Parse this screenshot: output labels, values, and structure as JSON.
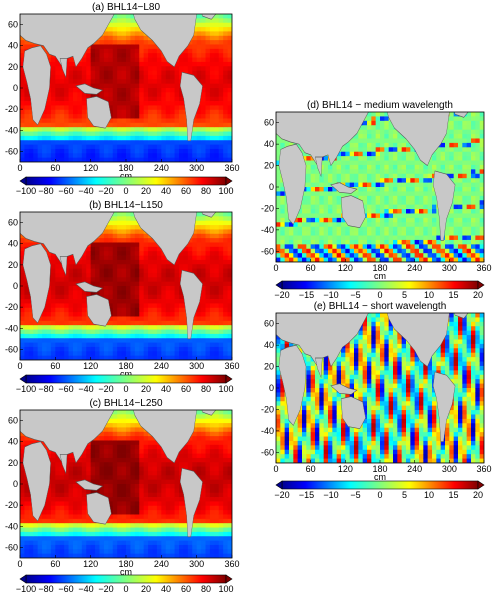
{
  "panels": [
    {
      "title": "(a) BHL14−L80",
      "kind": "large",
      "x_ticks": [
        "0",
        "60",
        "120",
        "180",
        "240",
        "300",
        "360"
      ],
      "y_ticks": [
        "60",
        "40",
        "20",
        "0",
        "-20",
        "-40",
        "-60"
      ],
      "unit": "cm",
      "colorbar_ticks": [
        "−100",
        "−80",
        "−60",
        "−40",
        "−20",
        "0",
        "20",
        "40",
        "60",
        "80",
        "100"
      ],
      "colormap": "jet",
      "range": [
        -100,
        100
      ],
      "field": "L80"
    },
    {
      "title": "(b) BHL14−L150",
      "kind": "large",
      "x_ticks": [
        "0",
        "60",
        "120",
        "180",
        "240",
        "300",
        "360"
      ],
      "y_ticks": [
        "60",
        "40",
        "20",
        "0",
        "-20",
        "-40",
        "-60"
      ],
      "unit": "cm",
      "colorbar_ticks": [
        "−100",
        "−80",
        "−60",
        "−40",
        "−20",
        "0",
        "20",
        "40",
        "60",
        "80",
        "100"
      ],
      "colormap": "jet",
      "range": [
        -100,
        100
      ],
      "field": "L150"
    },
    {
      "title": "(c) BHL14−L250",
      "kind": "large",
      "x_ticks": [
        "0",
        "60",
        "120",
        "180",
        "240",
        "300",
        "360"
      ],
      "y_ticks": [
        "60",
        "40",
        "20",
        "0",
        "-20",
        "-40",
        "-60"
      ],
      "unit": "cm",
      "colorbar_ticks": [
        "−100",
        "−80",
        "−60",
        "−40",
        "−20",
        "0",
        "20",
        "40",
        "60",
        "80",
        "100"
      ],
      "colormap": "jet",
      "range": [
        -100,
        100
      ],
      "field": "L250"
    },
    {
      "title": "(d) BHL14 − medium wavelength",
      "kind": "small",
      "x_ticks": [
        "0",
        "60",
        "120",
        "180",
        "240",
        "300",
        "360"
      ],
      "y_ticks": [
        "60",
        "40",
        "20",
        "0",
        "-20",
        "-40",
        "-60"
      ],
      "unit": "cm",
      "colorbar_ticks": [
        "−20",
        "−15",
        "−10",
        "−5",
        "0",
        "5",
        "10",
        "15",
        "20"
      ],
      "colormap": "jet",
      "range": [
        -20,
        20
      ],
      "field": "medium"
    },
    {
      "title": "(e) BHL14 − short wavelength",
      "kind": "small",
      "x_ticks": [
        "0",
        "60",
        "120",
        "180",
        "240",
        "300",
        "360"
      ],
      "y_ticks": [
        "60",
        "40",
        "20",
        "0",
        "-20",
        "-40",
        "-60"
      ],
      "unit": "cm",
      "colorbar_ticks": [
        "−20",
        "−15",
        "−10",
        "−5",
        "0",
        "5",
        "10",
        "15",
        "20"
      ],
      "colormap": "jet",
      "range": [
        -20,
        20
      ],
      "field": "short"
    }
  ],
  "colors": {
    "land": "#c8c8c8",
    "coast": "#555555"
  }
}
